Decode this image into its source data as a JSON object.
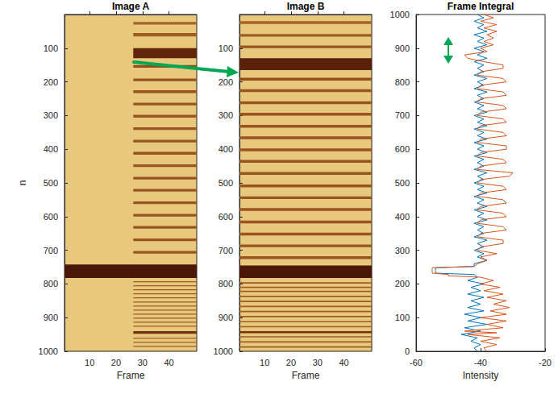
{
  "chart_data": [
    {
      "type": "heatmap",
      "title": "Image A",
      "xlabel": "Frame",
      "ylabel": "n",
      "xlim": [
        0.5,
        50.5
      ],
      "xticks": [
        10,
        20,
        30,
        40
      ],
      "ylim": [
        1000,
        0
      ],
      "yticks": [
        100,
        200,
        300,
        400,
        500,
        600,
        700,
        800,
        900,
        1000
      ],
      "clim": [
        -60,
        -25
      ],
      "background": -32,
      "cells": [
        [
          0.5,
          50.5,
          742,
          782,
          -58
        ],
        [
          26.5,
          50.5,
          22,
          30,
          -45
        ],
        [
          26.5,
          50.5,
          55,
          65,
          -46
        ],
        [
          26.5,
          50.5,
          100,
          130,
          -55
        ],
        [
          26.5,
          50.5,
          150,
          158,
          -48
        ],
        [
          26.5,
          50.5,
          190,
          198,
          -47
        ],
        [
          26.5,
          50.5,
          225,
          233,
          -47
        ],
        [
          26.5,
          50.5,
          262,
          270,
          -47
        ],
        [
          26.5,
          50.5,
          298,
          306,
          -47
        ],
        [
          26.5,
          50.5,
          335,
          343,
          -47
        ],
        [
          26.5,
          50.5,
          372,
          380,
          -47
        ],
        [
          26.5,
          50.5,
          408,
          416,
          -47
        ],
        [
          26.5,
          50.5,
          445,
          453,
          -47
        ],
        [
          26.5,
          50.5,
          482,
          490,
          -47
        ],
        [
          26.5,
          50.5,
          518,
          526,
          -47
        ],
        [
          26.5,
          50.5,
          555,
          563,
          -47
        ],
        [
          26.5,
          50.5,
          592,
          600,
          -47
        ],
        [
          26.5,
          50.5,
          628,
          636,
          -47
        ],
        [
          26.5,
          50.5,
          665,
          673,
          -47
        ],
        [
          26.5,
          50.5,
          702,
          710,
          -47
        ],
        [
          26.5,
          50.5,
          792,
          795,
          -46
        ],
        [
          26.5,
          50.5,
          804,
          807,
          -46
        ],
        [
          26.5,
          50.5,
          816,
          819,
          -46
        ],
        [
          26.5,
          50.5,
          828,
          831,
          -46
        ],
        [
          26.5,
          50.5,
          840,
          843,
          -46
        ],
        [
          26.5,
          50.5,
          852,
          855,
          -46
        ],
        [
          26.5,
          50.5,
          864,
          867,
          -46
        ],
        [
          26.5,
          50.5,
          876,
          879,
          -46
        ],
        [
          26.5,
          50.5,
          888,
          891,
          -46
        ],
        [
          26.5,
          50.5,
          900,
          903,
          -46
        ],
        [
          26.5,
          50.5,
          912,
          915,
          -46
        ],
        [
          26.5,
          50.5,
          924,
          927,
          -46
        ],
        [
          26.5,
          50.5,
          940,
          948,
          -52
        ],
        [
          26.5,
          50.5,
          960,
          963,
          -46
        ],
        [
          26.5,
          50.5,
          972,
          975,
          -46
        ],
        [
          26.5,
          50.5,
          984,
          987,
          -46
        ]
      ]
    },
    {
      "type": "heatmap",
      "title": "Image B",
      "xlabel": "Frame",
      "xlim": [
        0.5,
        50.5
      ],
      "xticks": [
        10,
        20,
        30,
        40
      ],
      "ylim": [
        1000,
        0
      ],
      "yticks": [
        100,
        200,
        300,
        400,
        500,
        600,
        700,
        800,
        900,
        1000
      ],
      "clim": [
        -60,
        -25
      ],
      "background": -32,
      "cells": [
        [
          0.5,
          50.5,
          20,
          28,
          -45
        ],
        [
          0.5,
          50.5,
          58,
          66,
          -46
        ],
        [
          0.5,
          50.5,
          92,
          100,
          -47
        ],
        [
          0.5,
          50.5,
          130,
          165,
          -56
        ],
        [
          0.5,
          50.5,
          188,
          196,
          -48
        ],
        [
          0.5,
          50.5,
          222,
          230,
          -47
        ],
        [
          0.5,
          50.5,
          258,
          266,
          -47
        ],
        [
          0.5,
          50.5,
          292,
          300,
          -47
        ],
        [
          0.5,
          50.5,
          328,
          336,
          -47
        ],
        [
          0.5,
          50.5,
          362,
          370,
          -47
        ],
        [
          0.5,
          50.5,
          398,
          406,
          -47
        ],
        [
          0.5,
          50.5,
          432,
          440,
          -47
        ],
        [
          0.5,
          50.5,
          468,
          476,
          -47
        ],
        [
          0.5,
          50.5,
          505,
          513,
          -47
        ],
        [
          0.5,
          50.5,
          540,
          548,
          -47
        ],
        [
          0.5,
          50.5,
          575,
          583,
          -47
        ],
        [
          0.5,
          50.5,
          612,
          620,
          -47
        ],
        [
          0.5,
          50.5,
          648,
          656,
          -47
        ],
        [
          0.5,
          50.5,
          683,
          691,
          -47
        ],
        [
          0.5,
          50.5,
          718,
          726,
          -47
        ],
        [
          0.5,
          50.5,
          745,
          782,
          -58
        ],
        [
          0.5,
          50.5,
          795,
          799,
          -46
        ],
        [
          0.5,
          50.5,
          808,
          812,
          -46
        ],
        [
          0.5,
          50.5,
          820,
          824,
          -46
        ],
        [
          0.5,
          50.5,
          835,
          839,
          -46
        ],
        [
          0.5,
          50.5,
          850,
          854,
          -46
        ],
        [
          0.5,
          50.5,
          865,
          869,
          -46
        ],
        [
          0.5,
          50.5,
          880,
          884,
          -46
        ],
        [
          0.5,
          50.5,
          895,
          899,
          -46
        ],
        [
          0.5,
          50.5,
          910,
          914,
          -46
        ],
        [
          0.5,
          50.5,
          925,
          929,
          -46
        ],
        [
          0.5,
          50.5,
          940,
          946,
          -52
        ],
        [
          0.5,
          50.5,
          955,
          959,
          -46
        ],
        [
          0.5,
          50.5,
          970,
          974,
          -46
        ],
        [
          0.5,
          50.5,
          985,
          989,
          -46
        ]
      ]
    },
    {
      "type": "line",
      "title": "Frame Integral",
      "xlabel": "Intensity",
      "xlim": [
        -60,
        -20
      ],
      "xticks": [
        -60,
        -40,
        -20
      ],
      "ylim": [
        0,
        1000
      ],
      "yticks": [
        0,
        100,
        200,
        300,
        400,
        500,
        600,
        700,
        800,
        900,
        1000
      ],
      "series": [
        {
          "color": "#0072bd",
          "y": [
            1000,
            990,
            980,
            970,
            960,
            950,
            940,
            930,
            920,
            910,
            900,
            890,
            880,
            870,
            860,
            850,
            840,
            830,
            820,
            810,
            800,
            790,
            780,
            770,
            760,
            750,
            740,
            730,
            720,
            710,
            700,
            690,
            680,
            670,
            660,
            650,
            640,
            630,
            620,
            610,
            600,
            590,
            580,
            570,
            560,
            550,
            540,
            530,
            520,
            510,
            500,
            490,
            480,
            470,
            460,
            450,
            440,
            430,
            420,
            410,
            400,
            390,
            380,
            370,
            360,
            350,
            340,
            330,
            320,
            310,
            300,
            290,
            280,
            270,
            260,
            252,
            248,
            240,
            232,
            228,
            220,
            210,
            200,
            190,
            180,
            170,
            160,
            150,
            140,
            130,
            120,
            110,
            100,
            90,
            80,
            70,
            60,
            50,
            40,
            30,
            20,
            10,
            0
          ],
          "x": [
            -41,
            -39,
            -42,
            -39,
            -41,
            -38,
            -42,
            -39,
            -41,
            -38,
            -42,
            -39,
            -41,
            -38,
            -42,
            -39,
            -41,
            -39,
            -42,
            -38,
            -41,
            -39,
            -42,
            -38,
            -41,
            -39,
            -42,
            -39,
            -41,
            -38,
            -42,
            -39,
            -41,
            -38,
            -42,
            -39,
            -41,
            -38,
            -42,
            -39,
            -41,
            -38,
            -42,
            -39,
            -41,
            -39,
            -42,
            -38,
            -41,
            -39,
            -42,
            -39,
            -41,
            -38,
            -42,
            -39,
            -41,
            -38,
            -42,
            -39,
            -41,
            -38,
            -42,
            -39,
            -41,
            -39,
            -42,
            -38,
            -41,
            -39,
            -42,
            -39,
            -41,
            -38,
            -42,
            -42,
            -54,
            -54,
            -54,
            -42,
            -41,
            -44,
            -39,
            -43,
            -40,
            -44,
            -39,
            -43,
            -40,
            -44,
            -39,
            -45,
            -40,
            -44,
            -38,
            -45,
            -40,
            -46,
            -41,
            -43,
            -40,
            -42,
            -41
          ]
        },
        {
          "color": "#d95319",
          "y": [
            1000,
            990,
            980,
            970,
            960,
            950,
            940,
            930,
            920,
            910,
            900,
            890,
            880,
            870,
            860,
            850,
            840,
            830,
            820,
            810,
            800,
            790,
            780,
            770,
            760,
            750,
            740,
            730,
            720,
            710,
            700,
            690,
            680,
            670,
            660,
            650,
            640,
            630,
            620,
            610,
            600,
            590,
            580,
            570,
            560,
            550,
            540,
            530,
            520,
            510,
            500,
            490,
            480,
            470,
            460,
            450,
            440,
            430,
            420,
            410,
            400,
            390,
            380,
            370,
            360,
            350,
            340,
            330,
            320,
            310,
            300,
            290,
            280,
            270,
            260,
            252,
            248,
            240,
            232,
            228,
            224,
            220,
            210,
            200,
            190,
            180,
            170,
            160,
            150,
            140,
            130,
            120,
            110,
            100,
            90,
            80,
            70,
            60,
            55,
            50,
            40,
            30,
            20,
            10,
            0
          ],
          "x": [
            -39,
            -36,
            -40,
            -35,
            -39,
            -35,
            -38,
            -36,
            -39,
            -36,
            -40,
            -38,
            -45,
            -44,
            -39,
            -33,
            -33,
            -40,
            -41,
            -33,
            -32,
            -40,
            -41,
            -33,
            -32,
            -40,
            -41,
            -33,
            -32,
            -40,
            -41,
            -33,
            -32,
            -40,
            -41,
            -33,
            -32,
            -40,
            -41,
            -32,
            -32,
            -40,
            -41,
            -33,
            -32,
            -40,
            -41,
            -30,
            -31,
            -40,
            -41,
            -33,
            -32,
            -40,
            -41,
            -33,
            -32,
            -40,
            -41,
            -33,
            -32,
            -40,
            -41,
            -33,
            -32,
            -40,
            -41,
            -33,
            -33,
            -40,
            -41,
            -35,
            -40,
            -38,
            -41,
            -42,
            -55,
            -55,
            -55,
            -50,
            -50,
            -40,
            -36,
            -40,
            -34,
            -39,
            -33,
            -38,
            -32,
            -36,
            -31,
            -37,
            -32,
            -40,
            -32,
            -38,
            -33,
            -45,
            -35,
            -44,
            -34,
            -40,
            -35,
            -39,
            -38
          ]
        }
      ]
    }
  ]
}
